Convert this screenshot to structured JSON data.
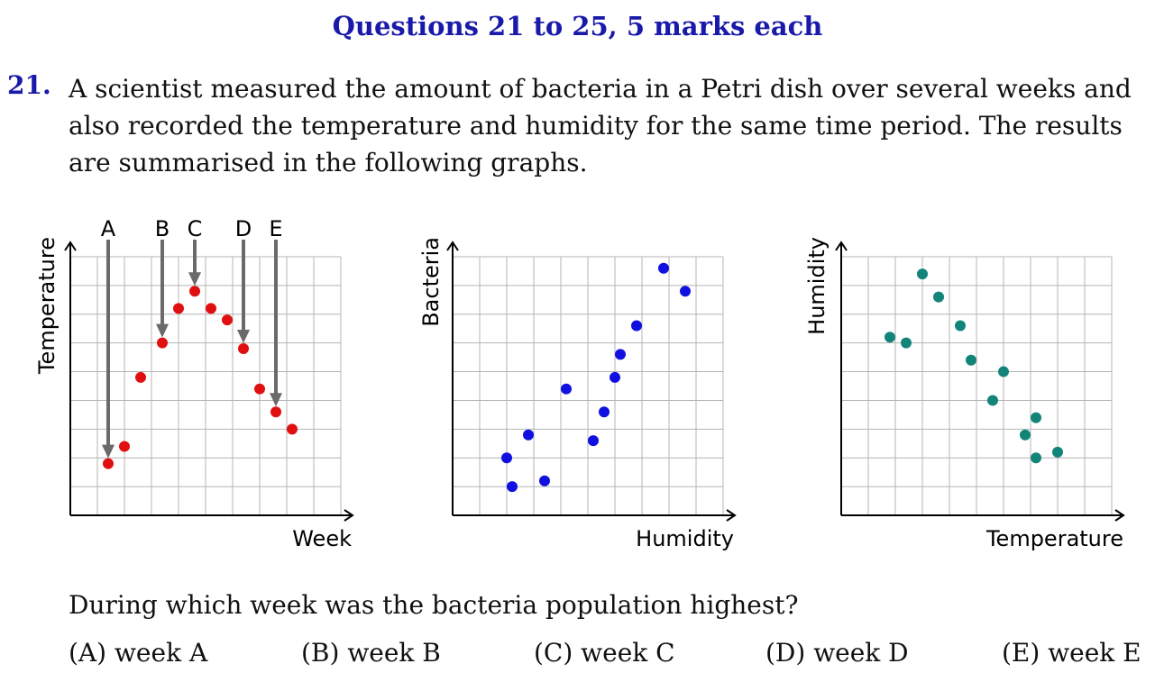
{
  "heading": "Questions 21 to 25, 5 marks each",
  "question": {
    "number": "21.",
    "text_lines": [
      "A scientist measured the amount of bacteria in a Petri dish over several weeks and",
      "also recorded the temperature and humidity for the same time period. The results",
      "are summarised in the following graphs."
    ],
    "prompt": "During which week was the bacteria population highest?",
    "options": [
      {
        "label": "(A) week A"
      },
      {
        "label": "(B) week B"
      },
      {
        "label": "(C) week C"
      },
      {
        "label": "(D) week D"
      },
      {
        "label": "(E) week E"
      }
    ]
  },
  "chart_data": [
    {
      "type": "scatter",
      "xlabel": "Week",
      "ylabel": "Temperature",
      "xlim": [
        0,
        10
      ],
      "ylim": [
        0,
        9
      ],
      "color": "#e01010",
      "points": [
        {
          "x": 1.4,
          "y": 1.8
        },
        {
          "x": 2.0,
          "y": 2.4
        },
        {
          "x": 2.6,
          "y": 4.8
        },
        {
          "x": 3.4,
          "y": 6.0
        },
        {
          "x": 4.0,
          "y": 7.2
        },
        {
          "x": 4.6,
          "y": 7.8
        },
        {
          "x": 5.2,
          "y": 7.2
        },
        {
          "x": 5.8,
          "y": 6.8
        },
        {
          "x": 6.4,
          "y": 5.8
        },
        {
          "x": 7.0,
          "y": 4.4
        },
        {
          "x": 7.6,
          "y": 3.6
        },
        {
          "x": 8.2,
          "y": 3.0
        }
      ],
      "annotations": [
        {
          "label": "A",
          "x": 1.4,
          "point_y": 1.8
        },
        {
          "label": "B",
          "x": 3.4,
          "point_y": 6.0
        },
        {
          "label": "C",
          "x": 4.6,
          "point_y": 7.8
        },
        {
          "label": "D",
          "x": 6.4,
          "point_y": 5.8
        },
        {
          "label": "E",
          "x": 7.6,
          "point_y": 3.6
        }
      ],
      "arrow_color": "#6a6a6a",
      "grid": true
    },
    {
      "type": "scatter",
      "xlabel": "Humidity",
      "ylabel": "Bacteria",
      "xlim": [
        0,
        10
      ],
      "ylim": [
        0,
        9
      ],
      "color": "#1010e0",
      "points": [
        {
          "x": 2.0,
          "y": 2.0
        },
        {
          "x": 2.2,
          "y": 1.0
        },
        {
          "x": 2.8,
          "y": 2.8
        },
        {
          "x": 3.4,
          "y": 1.2
        },
        {
          "x": 4.2,
          "y": 4.4
        },
        {
          "x": 5.2,
          "y": 2.6
        },
        {
          "x": 5.6,
          "y": 3.6
        },
        {
          "x": 6.0,
          "y": 4.8
        },
        {
          "x": 6.2,
          "y": 5.6
        },
        {
          "x": 6.8,
          "y": 6.6
        },
        {
          "x": 7.8,
          "y": 8.6
        },
        {
          "x": 8.6,
          "y": 7.8
        }
      ],
      "grid": true
    },
    {
      "type": "scatter",
      "xlabel": "Temperature",
      "ylabel": "Humidity",
      "xlim": [
        0,
        10
      ],
      "ylim": [
        0,
        9
      ],
      "color": "#12847a",
      "points": [
        {
          "x": 1.8,
          "y": 6.2
        },
        {
          "x": 2.4,
          "y": 6.0
        },
        {
          "x": 3.0,
          "y": 8.4
        },
        {
          "x": 3.6,
          "y": 7.6
        },
        {
          "x": 4.4,
          "y": 6.6
        },
        {
          "x": 4.8,
          "y": 5.4
        },
        {
          "x": 5.6,
          "y": 4.0
        },
        {
          "x": 6.0,
          "y": 5.0
        },
        {
          "x": 6.8,
          "y": 2.8
        },
        {
          "x": 7.2,
          "y": 3.4
        },
        {
          "x": 7.2,
          "y": 2.0
        },
        {
          "x": 8.0,
          "y": 2.2
        }
      ],
      "grid": true
    }
  ]
}
